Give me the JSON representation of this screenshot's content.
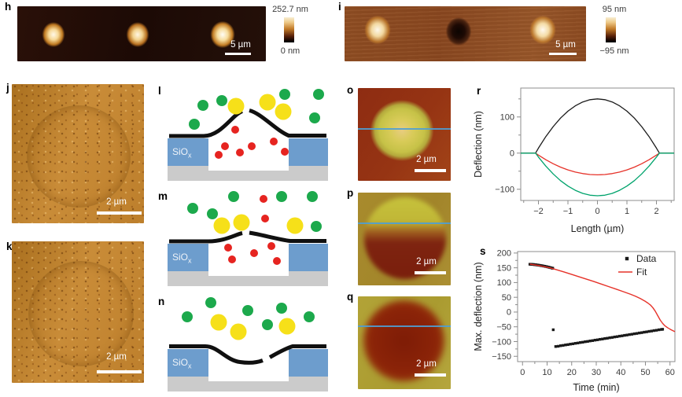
{
  "panels": {
    "h": {
      "label": "h",
      "scalebar": "5 µm",
      "colorbar": {
        "top": "252.7 nm",
        "bottom": "0 nm"
      }
    },
    "i": {
      "label": "i",
      "scalebar": "5 µm",
      "colorbar": {
        "top": "95 nm",
        "bottom": "−95 nm"
      }
    },
    "j": {
      "label": "j",
      "scalebar": "2 µm"
    },
    "k": {
      "label": "k",
      "scalebar": "2 µm"
    },
    "l": {
      "label": "l",
      "oxide": "SiO",
      "oxide_sub": "x"
    },
    "m": {
      "label": "m",
      "oxide": "SiO",
      "oxide_sub": "x"
    },
    "n": {
      "label": "n",
      "oxide": "SiO",
      "oxide_sub": "x"
    },
    "o": {
      "label": "o",
      "scalebar": "2 µm"
    },
    "p": {
      "label": "p",
      "scalebar": "2 µm"
    },
    "q": {
      "label": "q",
      "scalebar": "2 µm"
    },
    "r": {
      "label": "r"
    },
    "s": {
      "label": "s"
    }
  },
  "colors": {
    "membrane": "#101010",
    "oxide": "#6d9dcd",
    "substrate": "#cbcbcb",
    "molecule_green": "#1ca94c",
    "molecule_yellow": "#f6e019",
    "molecule_red": "#e62420",
    "scan_line": "#4f9fd4",
    "frame": "#8c8c8c",
    "tick_text": "#3c3c3c",
    "series_black": "#1a1a1a",
    "series_red": "#e63229",
    "series_green": "#00a36c"
  },
  "schematics": {
    "l": {
      "membrane": [
        "M10,67 L54,67 C76,67 90,40 103,35.5",
        "M112,34.5 C127,38 146,60 162,66.5 L210,66.5"
      ],
      "green": [
        [
          53,
          28
        ],
        [
          77,
          22
        ],
        [
          157,
          14
        ],
        [
          200,
          14
        ],
        [
          195,
          44
        ],
        [
          42,
          52
        ]
      ],
      "yellow": [
        [
          95,
          29
        ],
        [
          135,
          24
        ],
        [
          155,
          36
        ]
      ],
      "red": [
        [
          94,
          59
        ],
        [
          81,
          80
        ],
        [
          73,
          91
        ],
        [
          100,
          88
        ],
        [
          115,
          80
        ],
        [
          143,
          74
        ],
        [
          157,
          87
        ]
      ]
    },
    "m": {
      "membrane": [
        "M10,67 L60,67 C80,67 94,58.5 103,56.5",
        "M112,56 C128,58.5 148,64.5 164,66.5 L210,66.5"
      ],
      "green": [
        [
          92,
          10
        ],
        [
          40,
          25
        ],
        [
          65,
          32
        ],
        [
          153,
          10
        ],
        [
          192,
          10
        ],
        [
          197,
          48
        ]
      ],
      "yellow": [
        [
          77,
          47
        ],
        [
          102,
          43
        ],
        [
          170,
          47
        ]
      ],
      "red": [
        [
          130,
          13
        ],
        [
          132,
          38
        ],
        [
          85,
          75
        ],
        [
          90,
          90
        ],
        [
          118,
          82
        ],
        [
          140,
          73
        ],
        [
          147,
          92
        ]
      ]
    },
    "n": {
      "membrane": [
        "M10,66.5 L56,66.5 C72,66.5 82,84 100,86.5 C110,88 121,87.5 129,84.5",
        "M138,80.5 C147,75.5 157,69.5 167,66.5 L210,66.5"
      ],
      "green": [
        [
          33,
          29
        ],
        [
          63,
          11
        ],
        [
          110,
          21
        ],
        [
          135,
          39
        ],
        [
          153,
          18
        ],
        [
          188,
          29
        ]
      ],
      "yellow": [
        [
          73,
          36
        ],
        [
          98,
          48
        ],
        [
          160,
          41
        ]
      ],
      "red": []
    }
  },
  "chart_data": [
    {
      "id": "r",
      "type": "line",
      "title": "",
      "xlabel": "Length (µm)",
      "ylabel": "Deflection (nm)",
      "xlim": [
        -2.6,
        2.6
      ],
      "ylim": [
        -131,
        180
      ],
      "xticks": [
        -2,
        -1,
        0,
        1,
        2
      ],
      "yticks": [
        -100,
        0,
        100
      ],
      "xminor": 0.5,
      "yminor": 50,
      "grid": false,
      "legend": null,
      "series": [
        {
          "name": "black",
          "kind": "line",
          "color": "#1a1a1a",
          "width": 1.3,
          "points": [
            [
              -2.6,
              0
            ],
            [
              -2.35,
              0
            ],
            [
              -2.1,
              0
            ],
            [
              -2,
              13.9
            ],
            [
              -1.75,
              45.8
            ],
            [
              -1.5,
              73.5
            ],
            [
              -1.25,
              96.9
            ],
            [
              -1,
              116
            ],
            [
              -0.75,
              130.9
            ],
            [
              -0.5,
              141.5
            ],
            [
              -0.25,
              147.9
            ],
            [
              0,
              150
            ],
            [
              0.25,
              147.9
            ],
            [
              0.5,
              141.5
            ],
            [
              0.75,
              130.9
            ],
            [
              1,
              116
            ],
            [
              1.25,
              96.9
            ],
            [
              1.5,
              73.5
            ],
            [
              1.75,
              45.8
            ],
            [
              2,
              13.9
            ],
            [
              2.1,
              0
            ],
            [
              2.35,
              0
            ],
            [
              2.6,
              0
            ]
          ]
        },
        {
          "name": "red",
          "kind": "line",
          "color": "#e63229",
          "width": 1.3,
          "points": [
            [
              -2.6,
              0
            ],
            [
              -2.35,
              0
            ],
            [
              -2.1,
              0
            ],
            [
              -2,
              -5.6
            ],
            [
              -1.75,
              -18.3
            ],
            [
              -1.5,
              -29.4
            ],
            [
              -1.25,
              -38.8
            ],
            [
              -1,
              -46.4
            ],
            [
              -0.75,
              -52.4
            ],
            [
              -0.5,
              -56.6
            ],
            [
              -0.25,
              -59.2
            ],
            [
              0,
              -60
            ],
            [
              0.25,
              -59.2
            ],
            [
              0.5,
              -56.6
            ],
            [
              0.75,
              -52.4
            ],
            [
              1,
              -46.4
            ],
            [
              1.25,
              -38.8
            ],
            [
              1.5,
              -29.4
            ],
            [
              1.75,
              -18.3
            ],
            [
              2,
              -5.6
            ],
            [
              2.1,
              0
            ],
            [
              2.35,
              0
            ],
            [
              2.6,
              0
            ]
          ]
        },
        {
          "name": "green",
          "kind": "line",
          "color": "#00a36c",
          "width": 1.3,
          "points": [
            [
              -2.6,
              0
            ],
            [
              -2.35,
              0
            ],
            [
              -2.1,
              0
            ],
            [
              -2,
              -10.9
            ],
            [
              -1.75,
              -36
            ],
            [
              -1.5,
              -57.8
            ],
            [
              -1.25,
              -76.3
            ],
            [
              -1,
              -91.3
            ],
            [
              -0.75,
              -103
            ],
            [
              -0.5,
              -111.4
            ],
            [
              -0.25,
              -116.4
            ],
            [
              0,
              -118
            ],
            [
              0.25,
              -116.4
            ],
            [
              0.5,
              -111.4
            ],
            [
              0.75,
              -103
            ],
            [
              1,
              -91.3
            ],
            [
              1.25,
              -76.3
            ],
            [
              1.5,
              -57.8
            ],
            [
              1.75,
              -36
            ],
            [
              2,
              -10.9
            ],
            [
              2.1,
              0
            ],
            [
              2.35,
              0
            ],
            [
              2.6,
              0
            ]
          ]
        }
      ]
    },
    {
      "id": "s",
      "type": "scatter",
      "title": "",
      "xlabel": "Time (min)",
      "ylabel": "Max. deflection (nm)",
      "xlim": [
        -2,
        62
      ],
      "ylim": [
        -168,
        205
      ],
      "xticks": [
        0,
        10,
        20,
        30,
        40,
        50,
        60
      ],
      "yticks": [
        -150,
        -100,
        -50,
        0,
        50,
        100,
        150,
        200
      ],
      "xminor": 5,
      "yminor": 25,
      "grid": false,
      "legend": {
        "position": "top-right",
        "items": [
          {
            "label": "Data",
            "marker": "square",
            "color": "#1a1a1a"
          },
          {
            "label": "Fit",
            "marker": "line",
            "color": "#e63229"
          }
        ]
      },
      "series": [
        {
          "name": "Data",
          "kind": "scatter",
          "color": "#1a1a1a",
          "points": [
            [
              3,
              162
            ],
            [
              3.5,
              161.8
            ],
            [
              4,
              161.5
            ],
            [
              4.5,
              161.1
            ],
            [
              5,
              160.6
            ],
            [
              5.5,
              160.1
            ],
            [
              6,
              159.5
            ],
            [
              6.5,
              158.9
            ],
            [
              7,
              158.2
            ],
            [
              7.5,
              157.5
            ],
            [
              8,
              156.8
            ],
            [
              8.5,
              156
            ],
            [
              9,
              155.2
            ],
            [
              9.5,
              154.3
            ],
            [
              10,
              153.4
            ],
            [
              10.5,
              152.4
            ],
            [
              11,
              151.4
            ],
            [
              11.5,
              150.3
            ],
            [
              12,
              149.2
            ],
            [
              12.3,
              148.5
            ],
            [
              12.5,
              -60
            ],
            [
              13.5,
              -116.8
            ],
            [
              14.5,
              -115.9
            ],
            [
              15.5,
              -114.1
            ],
            [
              16.5,
              -113
            ],
            [
              17.5,
              -111.4
            ],
            [
              18.5,
              -110.3
            ],
            [
              19.5,
              -108.7
            ],
            [
              20.5,
              -107.6
            ],
            [
              21.5,
              -106
            ],
            [
              22.5,
              -104.9
            ],
            [
              23.5,
              -103.3
            ],
            [
              24.5,
              -102.2
            ],
            [
              25.5,
              -100.6
            ],
            [
              26.5,
              -99.5
            ],
            [
              27.5,
              -97.9
            ],
            [
              28.5,
              -96.8
            ],
            [
              29.5,
              -95.2
            ],
            [
              30.5,
              -94.1
            ],
            [
              31.5,
              -92.5
            ],
            [
              32.5,
              -91.4
            ],
            [
              33.5,
              -89.8
            ],
            [
              34.5,
              -88.7
            ],
            [
              35.5,
              -87.1
            ],
            [
              36.5,
              -86
            ],
            [
              37.5,
              -84.4
            ],
            [
              38.5,
              -83.3
            ],
            [
              39.5,
              -81.7
            ],
            [
              40.5,
              -80.6
            ],
            [
              41.5,
              -79
            ],
            [
              42.5,
              -77.9
            ],
            [
              43.5,
              -76.3
            ],
            [
              44.5,
              -75.2
            ],
            [
              45.5,
              -73.6
            ],
            [
              46.5,
              -72.5
            ],
            [
              47.5,
              -70.9
            ],
            [
              48.5,
              -69.8
            ],
            [
              49.5,
              -68.2
            ],
            [
              50.5,
              -67.1
            ],
            [
              51.5,
              -65.5
            ],
            [
              52.5,
              -64.4
            ],
            [
              53.5,
              -62.8
            ],
            [
              54.5,
              -61.7
            ],
            [
              55.5,
              -60.1
            ],
            [
              56.5,
              -59
            ],
            [
              57,
              -58.4
            ]
          ]
        },
        {
          "name": "Fit",
          "kind": "line",
          "color": "#e63229",
          "width": 1.4,
          "points": [
            [
              3,
              162.5
            ],
            [
              5,
              160
            ],
            [
              7,
              157
            ],
            [
              9,
              153.5
            ],
            [
              11,
              150
            ],
            [
              13,
              145.5
            ],
            [
              15,
              140.5
            ],
            [
              17,
              135.5
            ],
            [
              20,
              127.5
            ],
            [
              23,
              119.5
            ],
            [
              26,
              111.5
            ],
            [
              29,
              103.5
            ],
            [
              32,
              95
            ],
            [
              35,
              86.5
            ],
            [
              38,
              78
            ],
            [
              41,
              69
            ],
            [
              44,
              60
            ],
            [
              46,
              53.5
            ],
            [
              48,
              45.5
            ],
            [
              50,
              36
            ],
            [
              51,
              30.5
            ],
            [
              52,
              24
            ],
            [
              53,
              15
            ],
            [
              54,
              3
            ],
            [
              55,
              -12
            ],
            [
              56,
              -27
            ],
            [
              57,
              -38.5
            ],
            [
              58,
              -47
            ],
            [
              59,
              -53
            ],
            [
              60,
              -58
            ],
            [
              61,
              -62.5
            ],
            [
              62,
              -66.5
            ]
          ]
        }
      ]
    }
  ]
}
